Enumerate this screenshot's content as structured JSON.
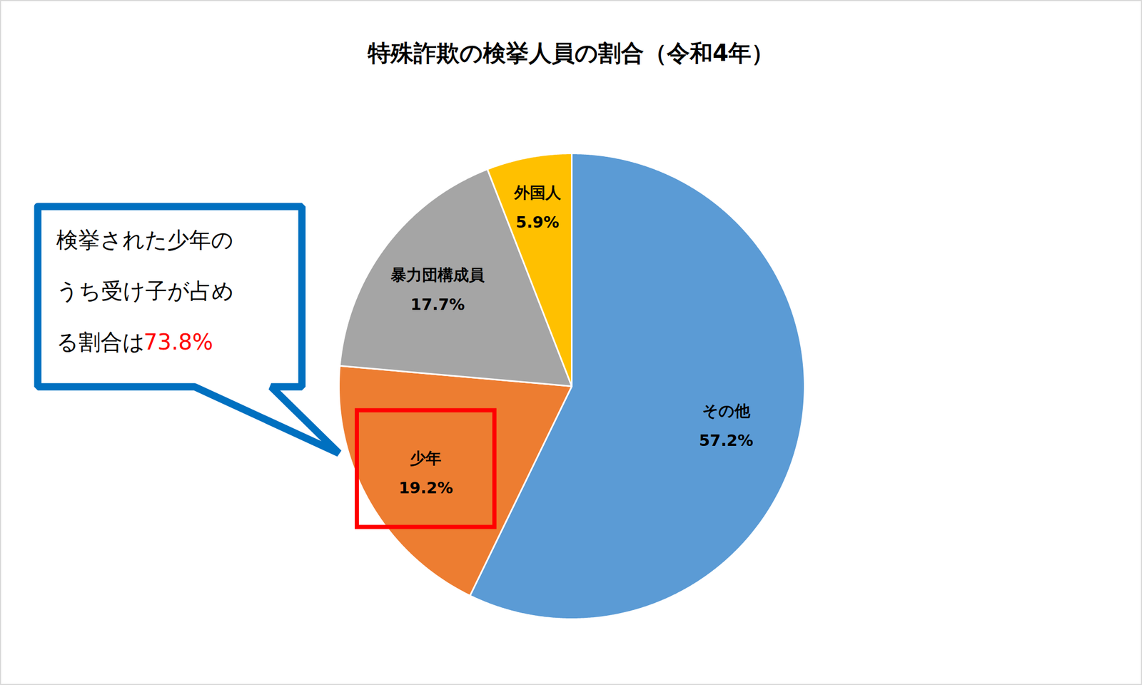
{
  "chart_data": {
    "type": "pie",
    "title": "特殊詐欺の検挙人員の割合（令和4年）",
    "categories": [
      "その他",
      "少年",
      "暴力団構成員",
      "外国人"
    ],
    "values": [
      57.2,
      19.2,
      17.7,
      5.9
    ],
    "value_labels": [
      "57.2%",
      "19.2%",
      "17.7%",
      "5.9%"
    ],
    "colors": [
      "#5B9BD5",
      "#ED7D31",
      "#A5A5A5",
      "#FFC000"
    ],
    "data_labels": true,
    "annotations": [
      {
        "text_lines": [
          "検挙された少年の",
          "うち受け子が占め",
          "る割合は"
        ],
        "highlight": "73.8%",
        "target": "少年"
      }
    ]
  }
}
